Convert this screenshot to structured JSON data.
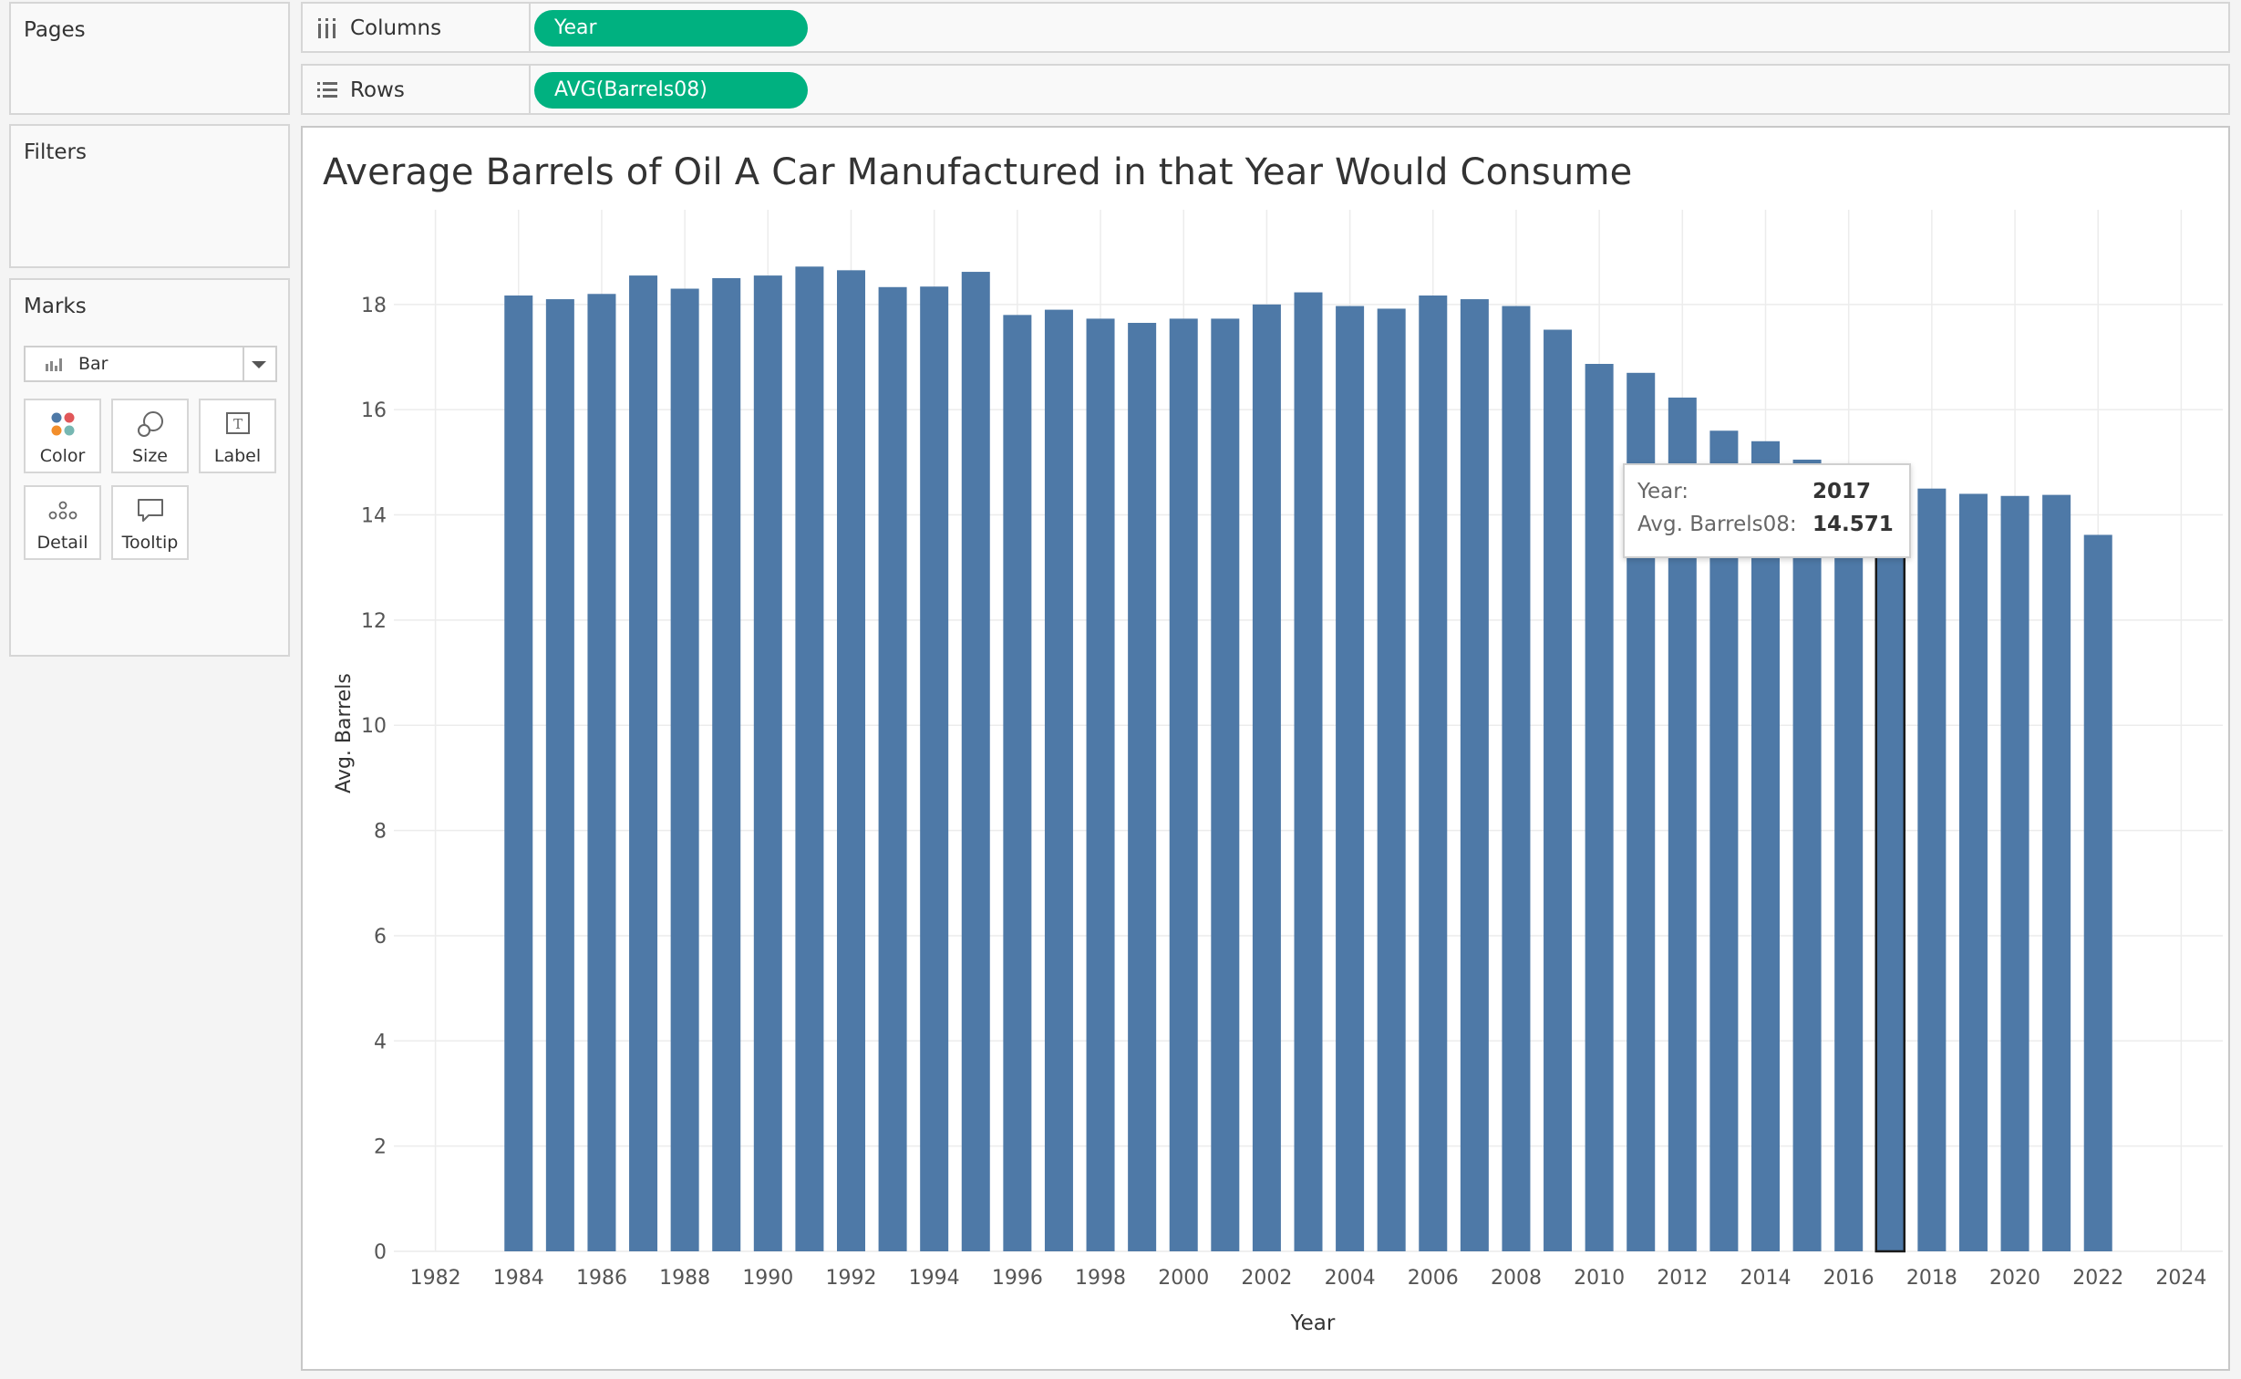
{
  "side": {
    "pages_title": "Pages",
    "filters_title": "Filters",
    "marks_title": "Marks",
    "mark_type": "Bar",
    "buttons": [
      {
        "label": "Color",
        "icon": "color-dots-icon"
      },
      {
        "label": "Size",
        "icon": "size-circles-icon"
      },
      {
        "label": "Label",
        "icon": "text-label-icon"
      },
      {
        "label": "Detail",
        "icon": "detail-dots-icon"
      },
      {
        "label": "Tooltip",
        "icon": "speech-bubble-icon"
      }
    ]
  },
  "shelves": {
    "columns_label": "Columns",
    "columns_pill": "Year",
    "rows_label": "Rows",
    "rows_pill": "AVG(Barrels08)"
  },
  "colors": {
    "bar": "#4e79a7",
    "pill": "#00b180",
    "grid": "#ececec"
  },
  "tooltip": {
    "year_key": "Year:",
    "year_val": "2017",
    "value_key": "Avg. Barrels08:",
    "value_val": "14.571"
  },
  "chart_data": {
    "type": "bar",
    "title": "Average Barrels of Oil A Car Manufactured in that Year Would Consume",
    "xlabel": "Year",
    "ylabel": "Avg. Barrels",
    "x": [
      1984,
      1985,
      1986,
      1987,
      1988,
      1989,
      1990,
      1991,
      1992,
      1993,
      1994,
      1995,
      1996,
      1997,
      1998,
      1999,
      2000,
      2001,
      2002,
      2003,
      2004,
      2005,
      2006,
      2007,
      2008,
      2009,
      2010,
      2011,
      2012,
      2013,
      2014,
      2015,
      2016,
      2017,
      2018,
      2019,
      2020,
      2021,
      2022
    ],
    "values": [
      18.17,
      18.1,
      18.2,
      18.55,
      18.3,
      18.5,
      18.55,
      18.72,
      18.65,
      18.33,
      18.34,
      18.62,
      17.8,
      17.9,
      17.73,
      17.65,
      17.73,
      17.73,
      18.0,
      18.23,
      17.97,
      17.92,
      18.17,
      18.1,
      17.97,
      17.52,
      16.87,
      16.7,
      16.23,
      15.6,
      15.4,
      15.05,
      14.56,
      14.571,
      14.5,
      14.4,
      14.36,
      14.38,
      13.62
    ],
    "highlighted": 2017,
    "xlim": [
      1981,
      2025
    ],
    "ylim": [
      0,
      19.8
    ],
    "x_ticks": [
      1982,
      1984,
      1986,
      1988,
      1990,
      1992,
      1994,
      1996,
      1998,
      2000,
      2002,
      2004,
      2006,
      2008,
      2010,
      2012,
      2014,
      2016,
      2018,
      2020,
      2022,
      2024
    ],
    "y_ticks": [
      0,
      2,
      4,
      6,
      8,
      10,
      12,
      14,
      16,
      18
    ],
    "grid": true
  }
}
